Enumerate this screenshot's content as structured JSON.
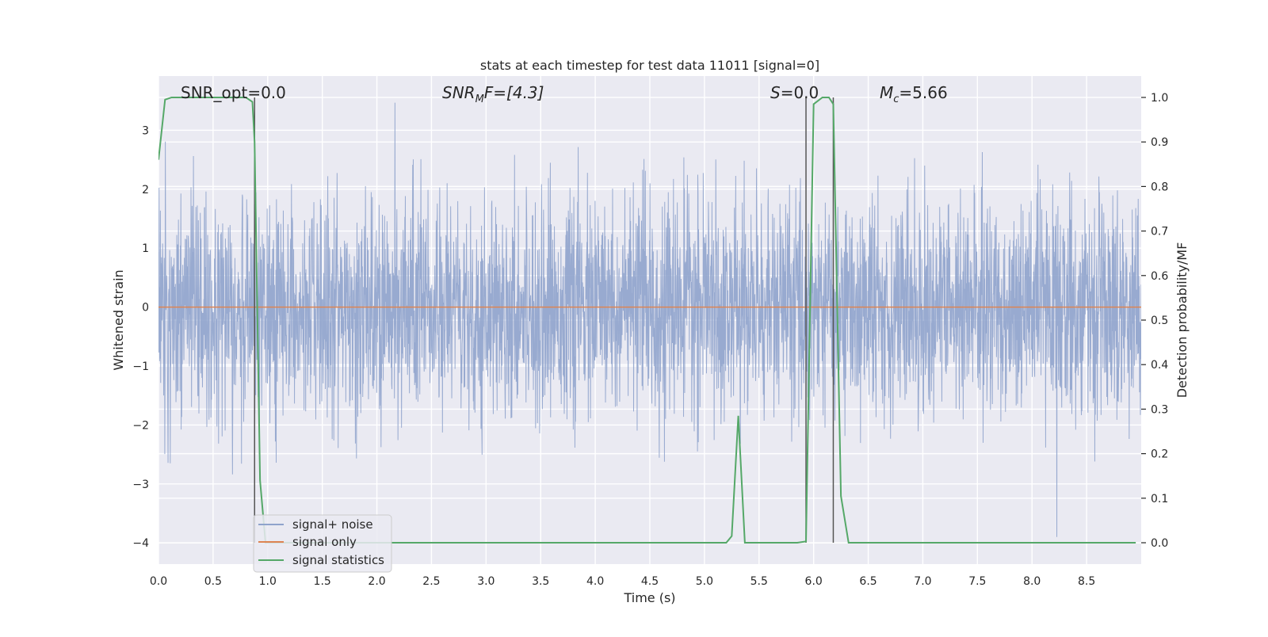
{
  "chart_data": {
    "type": "line",
    "title": "stats at each timestep for test data 11011 [signal=0]",
    "xlabel": "Time (s)",
    "ylabel_left": "Whitened strain",
    "ylabel_right": "Detection probability/MF",
    "xlim": [
      0.0,
      9.0
    ],
    "ylim_left": [
      -4.36,
      3.92
    ],
    "ylim_right": [
      -0.048,
      1.048
    ],
    "x_ticks": [
      0.0,
      0.5,
      1.0,
      1.5,
      2.0,
      2.5,
      3.0,
      3.5,
      4.0,
      4.5,
      5.0,
      5.5,
      6.0,
      6.5,
      7.0,
      7.5,
      8.0,
      8.5
    ],
    "x_tick_labels": [
      "0.0",
      "0.5",
      "1.0",
      "1.5",
      "2.0",
      "2.5",
      "3.0",
      "3.5",
      "4.0",
      "4.5",
      "5.0",
      "5.5",
      "6.0",
      "6.5",
      "7.0",
      "7.5",
      "8.0",
      "8.5"
    ],
    "y_left_ticks": [
      3,
      2,
      1,
      0,
      -1,
      -2,
      -3,
      -4
    ],
    "y_left_tick_labels": [
      "3",
      "2",
      "1",
      "0",
      "−1",
      "−2",
      "−3",
      "−4"
    ],
    "y_right_ticks": [
      1.0,
      0.9,
      0.8,
      0.7,
      0.6,
      0.5,
      0.4,
      0.3,
      0.2,
      0.1,
      0.0
    ],
    "y_right_tick_labels": [
      "1.0",
      "0.9",
      "0.8",
      "0.7",
      "0.6",
      "0.5",
      "0.4",
      "0.3",
      "0.2",
      "0.1",
      "0.0"
    ],
    "grid": true,
    "legend_placement": "lower-left",
    "annotations": {
      "snr_opt": "SNR_opt=0.0",
      "snr_mf_base": "SNR",
      "snr_mf_sub": "M",
      "snr_mf_rest": "F=[4.3]",
      "s_base": "S",
      "s_rest": "=0.0",
      "mc_base": "M",
      "mc_sub": "c",
      "mc_rest": "=5.66"
    },
    "vlines_x": [
      0.88,
      5.93,
      6.18
    ],
    "series": [
      {
        "name": "signal+ noise",
        "axis": "left",
        "color": "#8fa3cc",
        "noise_sigma": 0.9,
        "samples": 3600,
        "note_range": [
          -3.9,
          3.6
        ]
      },
      {
        "name": "signal only",
        "axis": "left",
        "color": "#dd8452",
        "x": [
          0.0,
          9.0
        ],
        "y": [
          0.0,
          0.0
        ]
      },
      {
        "name": "signal statistics",
        "axis": "right",
        "color": "#55a868",
        "x": [
          0.0,
          0.06,
          0.12,
          0.2,
          0.4,
          0.6,
          0.8,
          0.86,
          0.88,
          0.93,
          0.98,
          1.05,
          2.0,
          3.0,
          4.0,
          5.0,
          5.2,
          5.25,
          5.31,
          5.37,
          5.45,
          5.6,
          5.85,
          5.93,
          6.0,
          6.08,
          6.14,
          6.18,
          6.25,
          6.32,
          6.4,
          7.0,
          8.0,
          8.95
        ],
        "y": [
          0.86,
          0.995,
          1.0,
          1.0,
          1.0,
          1.0,
          1.0,
          0.99,
          0.9,
          0.14,
          0.0,
          0.0,
          0.0,
          0.0,
          0.0,
          0.0,
          0.0,
          0.015,
          0.285,
          0.0,
          0.0,
          0.0,
          0.0,
          0.003,
          0.985,
          1.0,
          1.0,
          0.985,
          0.105,
          0.0,
          0.0,
          0.0,
          0.0,
          0.0
        ]
      }
    ]
  }
}
